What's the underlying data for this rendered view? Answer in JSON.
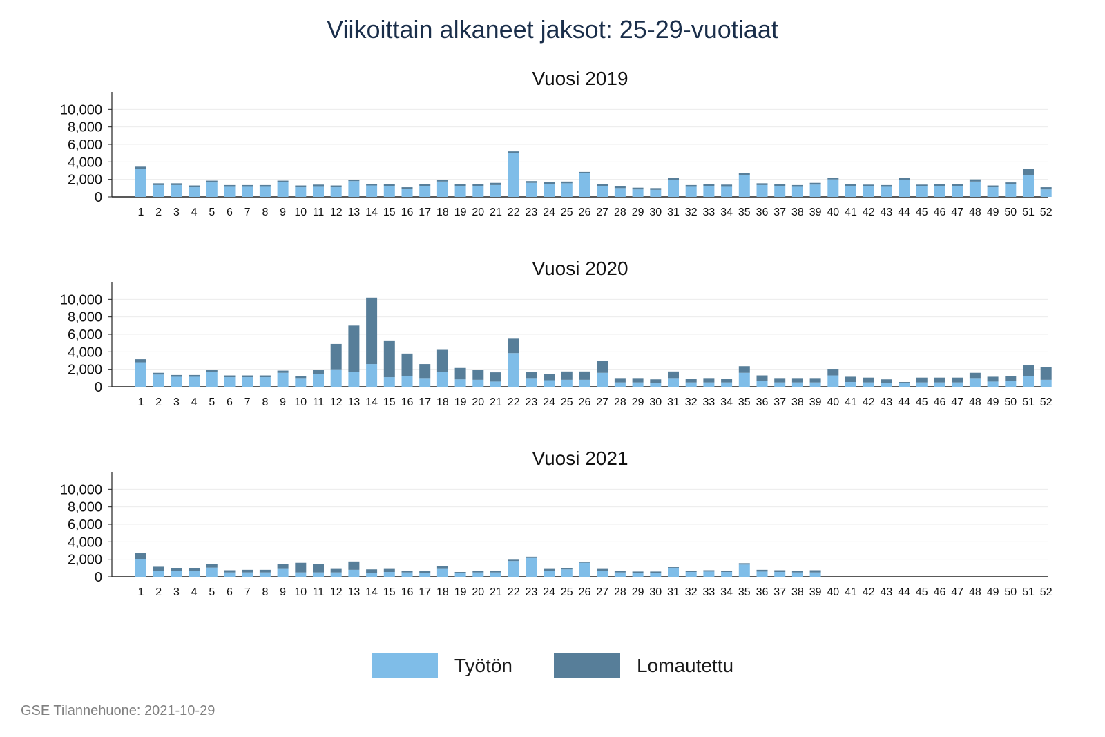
{
  "title": "Viikoittain alkaneet jaksot: 25-29-vuotiaat",
  "legend": [
    {
      "label": "Työtön",
      "color": "#7fbde8"
    },
    {
      "label": "Lomautettu",
      "color": "#577e99"
    }
  ],
  "source": "GSE Tilannehuone: 2021-10-29",
  "chart_data": [
    {
      "type": "bar",
      "stacked": true,
      "subtitle": "Vuosi 2019",
      "categories": [
        "1",
        "2",
        "3",
        "4",
        "5",
        "6",
        "7",
        "8",
        "9",
        "10",
        "11",
        "12",
        "13",
        "14",
        "15",
        "16",
        "17",
        "18",
        "19",
        "20",
        "21",
        "22",
        "23",
        "24",
        "25",
        "26",
        "27",
        "28",
        "29",
        "30",
        "31",
        "32",
        "33",
        "34",
        "35",
        "36",
        "37",
        "38",
        "39",
        "40",
        "41",
        "42",
        "43",
        "44",
        "45",
        "46",
        "47",
        "48",
        "49",
        "50",
        "51",
        "52"
      ],
      "yticks": [
        0,
        2000,
        4000,
        6000,
        8000,
        10000
      ],
      "ytick_labels": [
        "0",
        "2,000",
        "4,000",
        "6,000",
        "8,000",
        "10,000"
      ],
      "ylim": [
        0,
        12000
      ],
      "grid": true,
      "series": [
        {
          "name": "Työtön",
          "color": "#7fbde8",
          "values": [
            3200,
            1350,
            1350,
            1100,
            1650,
            1150,
            1150,
            1150,
            1700,
            1100,
            1150,
            1100,
            1800,
            1300,
            1250,
            900,
            1200,
            1750,
            1200,
            1200,
            1350,
            5000,
            1600,
            1500,
            1550,
            2700,
            1250,
            1000,
            850,
            800,
            1950,
            1150,
            1200,
            1150,
            2500,
            1350,
            1250,
            1150,
            1400,
            2000,
            1250,
            1200,
            1150,
            1950,
            1200,
            1250,
            1200,
            1750,
            1100,
            1450,
            2450,
            850
          ]
        },
        {
          "name": "Lomautettu",
          "color": "#577e99",
          "values": [
            250,
            200,
            200,
            200,
            200,
            200,
            200,
            200,
            150,
            200,
            250,
            200,
            150,
            200,
            200,
            200,
            250,
            150,
            250,
            250,
            250,
            200,
            200,
            200,
            200,
            150,
            200,
            200,
            200,
            200,
            200,
            200,
            250,
            250,
            200,
            200,
            200,
            200,
            200,
            200,
            200,
            200,
            200,
            200,
            200,
            250,
            250,
            250,
            200,
            200,
            750,
            250
          ]
        }
      ]
    },
    {
      "type": "bar",
      "stacked": true,
      "subtitle": "Vuosi 2020",
      "categories": [
        "1",
        "2",
        "3",
        "4",
        "5",
        "6",
        "7",
        "8",
        "9",
        "10",
        "11",
        "12",
        "13",
        "14",
        "15",
        "16",
        "17",
        "18",
        "19",
        "20",
        "21",
        "22",
        "23",
        "24",
        "25",
        "26",
        "27",
        "28",
        "29",
        "30",
        "31",
        "32",
        "33",
        "34",
        "35",
        "36",
        "37",
        "38",
        "39",
        "40",
        "41",
        "42",
        "43",
        "44",
        "45",
        "46",
        "47",
        "48",
        "49",
        "50",
        "51",
        "52"
      ],
      "yticks": [
        0,
        2000,
        4000,
        6000,
        8000,
        10000
      ],
      "ytick_labels": [
        "0",
        "2,000",
        "4,000",
        "6,000",
        "8,000",
        "10,000"
      ],
      "ylim": [
        0,
        12000
      ],
      "grid": true,
      "series": [
        {
          "name": "Työtön",
          "color": "#7fbde8",
          "values": [
            2800,
            1400,
            1150,
            1150,
            1700,
            1100,
            1100,
            1100,
            1600,
            1000,
            1500,
            2000,
            1700,
            2600,
            1100,
            1200,
            1000,
            1700,
            850,
            800,
            600,
            3850,
            1000,
            750,
            800,
            800,
            1600,
            500,
            500,
            400,
            1000,
            500,
            500,
            500,
            1600,
            700,
            500,
            500,
            500,
            1300,
            550,
            500,
            400,
            400,
            500,
            500,
            500,
            1000,
            600,
            700,
            1200,
            800
          ]
        },
        {
          "name": "Lomautettu",
          "color": "#577e99",
          "values": [
            350,
            200,
            200,
            200,
            200,
            200,
            200,
            200,
            250,
            200,
            400,
            2900,
            5300,
            7600,
            4200,
            2600,
            1600,
            2600,
            1300,
            1150,
            1050,
            1650,
            700,
            750,
            950,
            950,
            1350,
            500,
            500,
            450,
            750,
            400,
            500,
            400,
            750,
            600,
            500,
            500,
            500,
            750,
            600,
            550,
            450,
            150,
            550,
            550,
            550,
            600,
            550,
            550,
            1300,
            1450
          ]
        }
      ]
    },
    {
      "type": "bar",
      "stacked": true,
      "subtitle": "Vuosi 2021",
      "categories": [
        "1",
        "2",
        "3",
        "4",
        "5",
        "6",
        "7",
        "8",
        "9",
        "10",
        "11",
        "12",
        "13",
        "14",
        "15",
        "16",
        "17",
        "18",
        "19",
        "20",
        "21",
        "22",
        "23",
        "24",
        "25",
        "26",
        "27",
        "28",
        "29",
        "30",
        "31",
        "32",
        "33",
        "34",
        "35",
        "36",
        "37",
        "38",
        "39",
        "40",
        "41",
        "42",
        "43",
        "44",
        "45",
        "46",
        "47",
        "48",
        "49",
        "50",
        "51",
        "52"
      ],
      "yticks": [
        0,
        2000,
        4000,
        6000,
        8000,
        10000
      ],
      "ytick_labels": [
        "0",
        "2,000",
        "4,000",
        "6,000",
        "8,000",
        "10,000"
      ],
      "ylim": [
        0,
        12000
      ],
      "grid": true,
      "series": [
        {
          "name": "Työtön",
          "color": "#7fbde8",
          "values": [
            2000,
            700,
            650,
            650,
            1050,
            500,
            500,
            500,
            900,
            500,
            500,
            500,
            800,
            450,
            550,
            500,
            450,
            900,
            400,
            500,
            500,
            1800,
            2150,
            650,
            850,
            1600,
            700,
            500,
            450,
            450,
            950,
            550,
            600,
            550,
            1400,
            600,
            550,
            500,
            500,
            null,
            null,
            null,
            null,
            null,
            null,
            null,
            null,
            null,
            null,
            null,
            null,
            null
          ]
        },
        {
          "name": "Lomautettu",
          "color": "#577e99",
          "values": [
            750,
            450,
            350,
            300,
            450,
            250,
            300,
            300,
            600,
            1100,
            1000,
            400,
            950,
            400,
            350,
            200,
            200,
            300,
            150,
            150,
            200,
            150,
            150,
            250,
            150,
            100,
            200,
            150,
            150,
            150,
            150,
            150,
            150,
            150,
            150,
            200,
            200,
            200,
            250,
            null,
            null,
            null,
            null,
            null,
            null,
            null,
            null,
            null,
            null,
            null,
            null,
            null
          ]
        }
      ]
    }
  ]
}
